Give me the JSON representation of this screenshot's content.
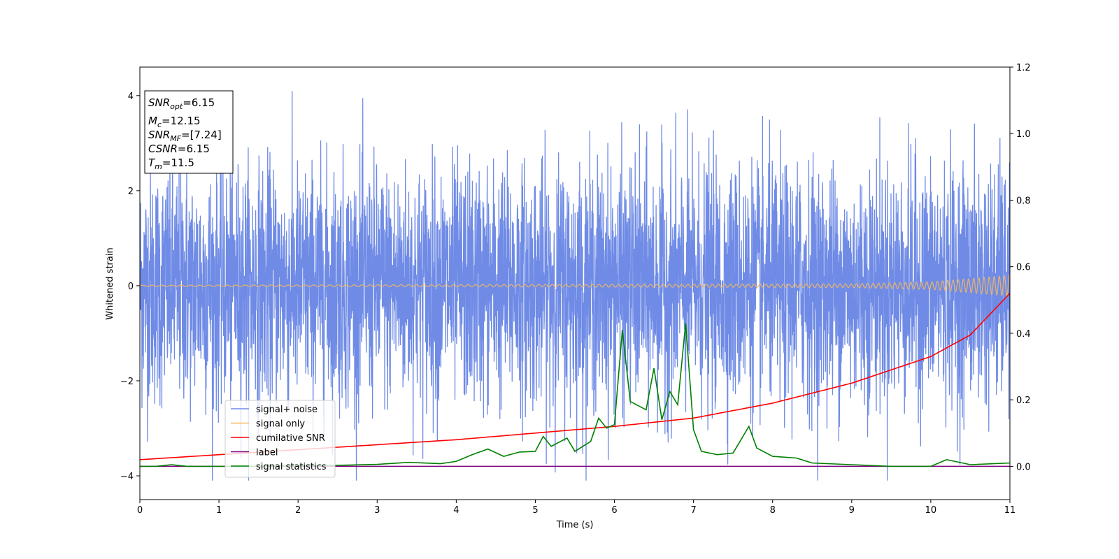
{
  "chart_data": {
    "type": "line",
    "xlabel": "Time (s)",
    "ylabel": "Whitened strain",
    "xlim": [
      0,
      11
    ],
    "ylim_left": [
      -4.5,
      4.6
    ],
    "ylim_right": [
      -0.1,
      1.2
    ],
    "x_ticks": [
      0,
      1,
      2,
      3,
      4,
      5,
      6,
      7,
      8,
      9,
      10,
      11
    ],
    "y_ticks_left": [
      -4,
      -2,
      0,
      2,
      4
    ],
    "y_ticks_right": [
      "0.0",
      "0.2",
      "0.4",
      "0.6",
      "0.8",
      "1.0",
      "1.2"
    ],
    "legend_placement": "lower-left",
    "annotation": {
      "lines": [
        {
          "var": "SNR",
          "sub": "opt",
          "value": "=6.15"
        },
        {
          "var": "M",
          "sub": "c",
          "value": "=12.15"
        },
        {
          "var": "SNR",
          "sub": "MF",
          "value": "=[7.24]"
        },
        {
          "var": "CSNR",
          "sub": "",
          "value": "=6.15"
        },
        {
          "var": "T",
          "sub": "m",
          "value": "=11.5"
        }
      ]
    },
    "series": [
      {
        "name": "signal+ noise",
        "axis": "left",
        "color": "#6f8be6",
        "kind": "noise",
        "sigma": 1.25,
        "approx_range": [
          -4.1,
          4.15
        ]
      },
      {
        "name": "signal only",
        "axis": "left",
        "color": "#f5b860",
        "kind": "chirp",
        "amplitude_points": [
          [
            0,
            0.01
          ],
          [
            9.0,
            0.04
          ],
          [
            10.0,
            0.08
          ],
          [
            11.0,
            0.22
          ]
        ]
      },
      {
        "name": "cumilative SNR",
        "axis": "right",
        "color": "#ff0000",
        "points": [
          [
            0,
            0.02
          ],
          [
            1,
            0.035
          ],
          [
            2,
            0.05
          ],
          [
            3,
            0.065
          ],
          [
            4,
            0.08
          ],
          [
            5,
            0.1
          ],
          [
            6,
            0.12
          ],
          [
            7,
            0.145
          ],
          [
            8,
            0.19
          ],
          [
            9,
            0.25
          ],
          [
            10,
            0.33
          ],
          [
            10.5,
            0.395
          ],
          [
            11,
            0.52
          ]
        ]
      },
      {
        "name": "label",
        "axis": "right",
        "color": "#800080",
        "points": [
          [
            0,
            0.0
          ],
          [
            11,
            0.0
          ]
        ]
      },
      {
        "name": "signal statistics",
        "axis": "right",
        "color": "#008000",
        "points": [
          [
            0,
            0.0
          ],
          [
            0.2,
            0.0
          ],
          [
            0.4,
            0.005
          ],
          [
            0.6,
            0.0
          ],
          [
            1.0,
            0.0
          ],
          [
            1.5,
            0.0
          ],
          [
            2.0,
            0.002
          ],
          [
            2.5,
            0.003
          ],
          [
            3.0,
            0.006
          ],
          [
            3.4,
            0.012
          ],
          [
            3.8,
            0.008
          ],
          [
            4.0,
            0.015
          ],
          [
            4.2,
            0.035
          ],
          [
            4.4,
            0.052
          ],
          [
            4.6,
            0.03
          ],
          [
            4.8,
            0.043
          ],
          [
            5.0,
            0.045
          ],
          [
            5.1,
            0.09
          ],
          [
            5.2,
            0.06
          ],
          [
            5.4,
            0.085
          ],
          [
            5.5,
            0.045
          ],
          [
            5.7,
            0.075
          ],
          [
            5.8,
            0.145
          ],
          [
            5.9,
            0.115
          ],
          [
            6.0,
            0.125
          ],
          [
            6.1,
            0.41
          ],
          [
            6.2,
            0.195
          ],
          [
            6.4,
            0.17
          ],
          [
            6.5,
            0.295
          ],
          [
            6.6,
            0.14
          ],
          [
            6.7,
            0.225
          ],
          [
            6.8,
            0.185
          ],
          [
            6.9,
            0.43
          ],
          [
            7.0,
            0.11
          ],
          [
            7.1,
            0.045
          ],
          [
            7.3,
            0.035
          ],
          [
            7.5,
            0.04
          ],
          [
            7.7,
            0.12
          ],
          [
            7.8,
            0.055
          ],
          [
            8.0,
            0.03
          ],
          [
            8.3,
            0.025
          ],
          [
            8.5,
            0.01
          ],
          [
            9.0,
            0.005
          ],
          [
            9.5,
            0.0
          ],
          [
            10.0,
            0.0
          ],
          [
            10.2,
            0.02
          ],
          [
            10.5,
            0.005
          ],
          [
            11.0,
            0.01
          ]
        ]
      }
    ]
  }
}
